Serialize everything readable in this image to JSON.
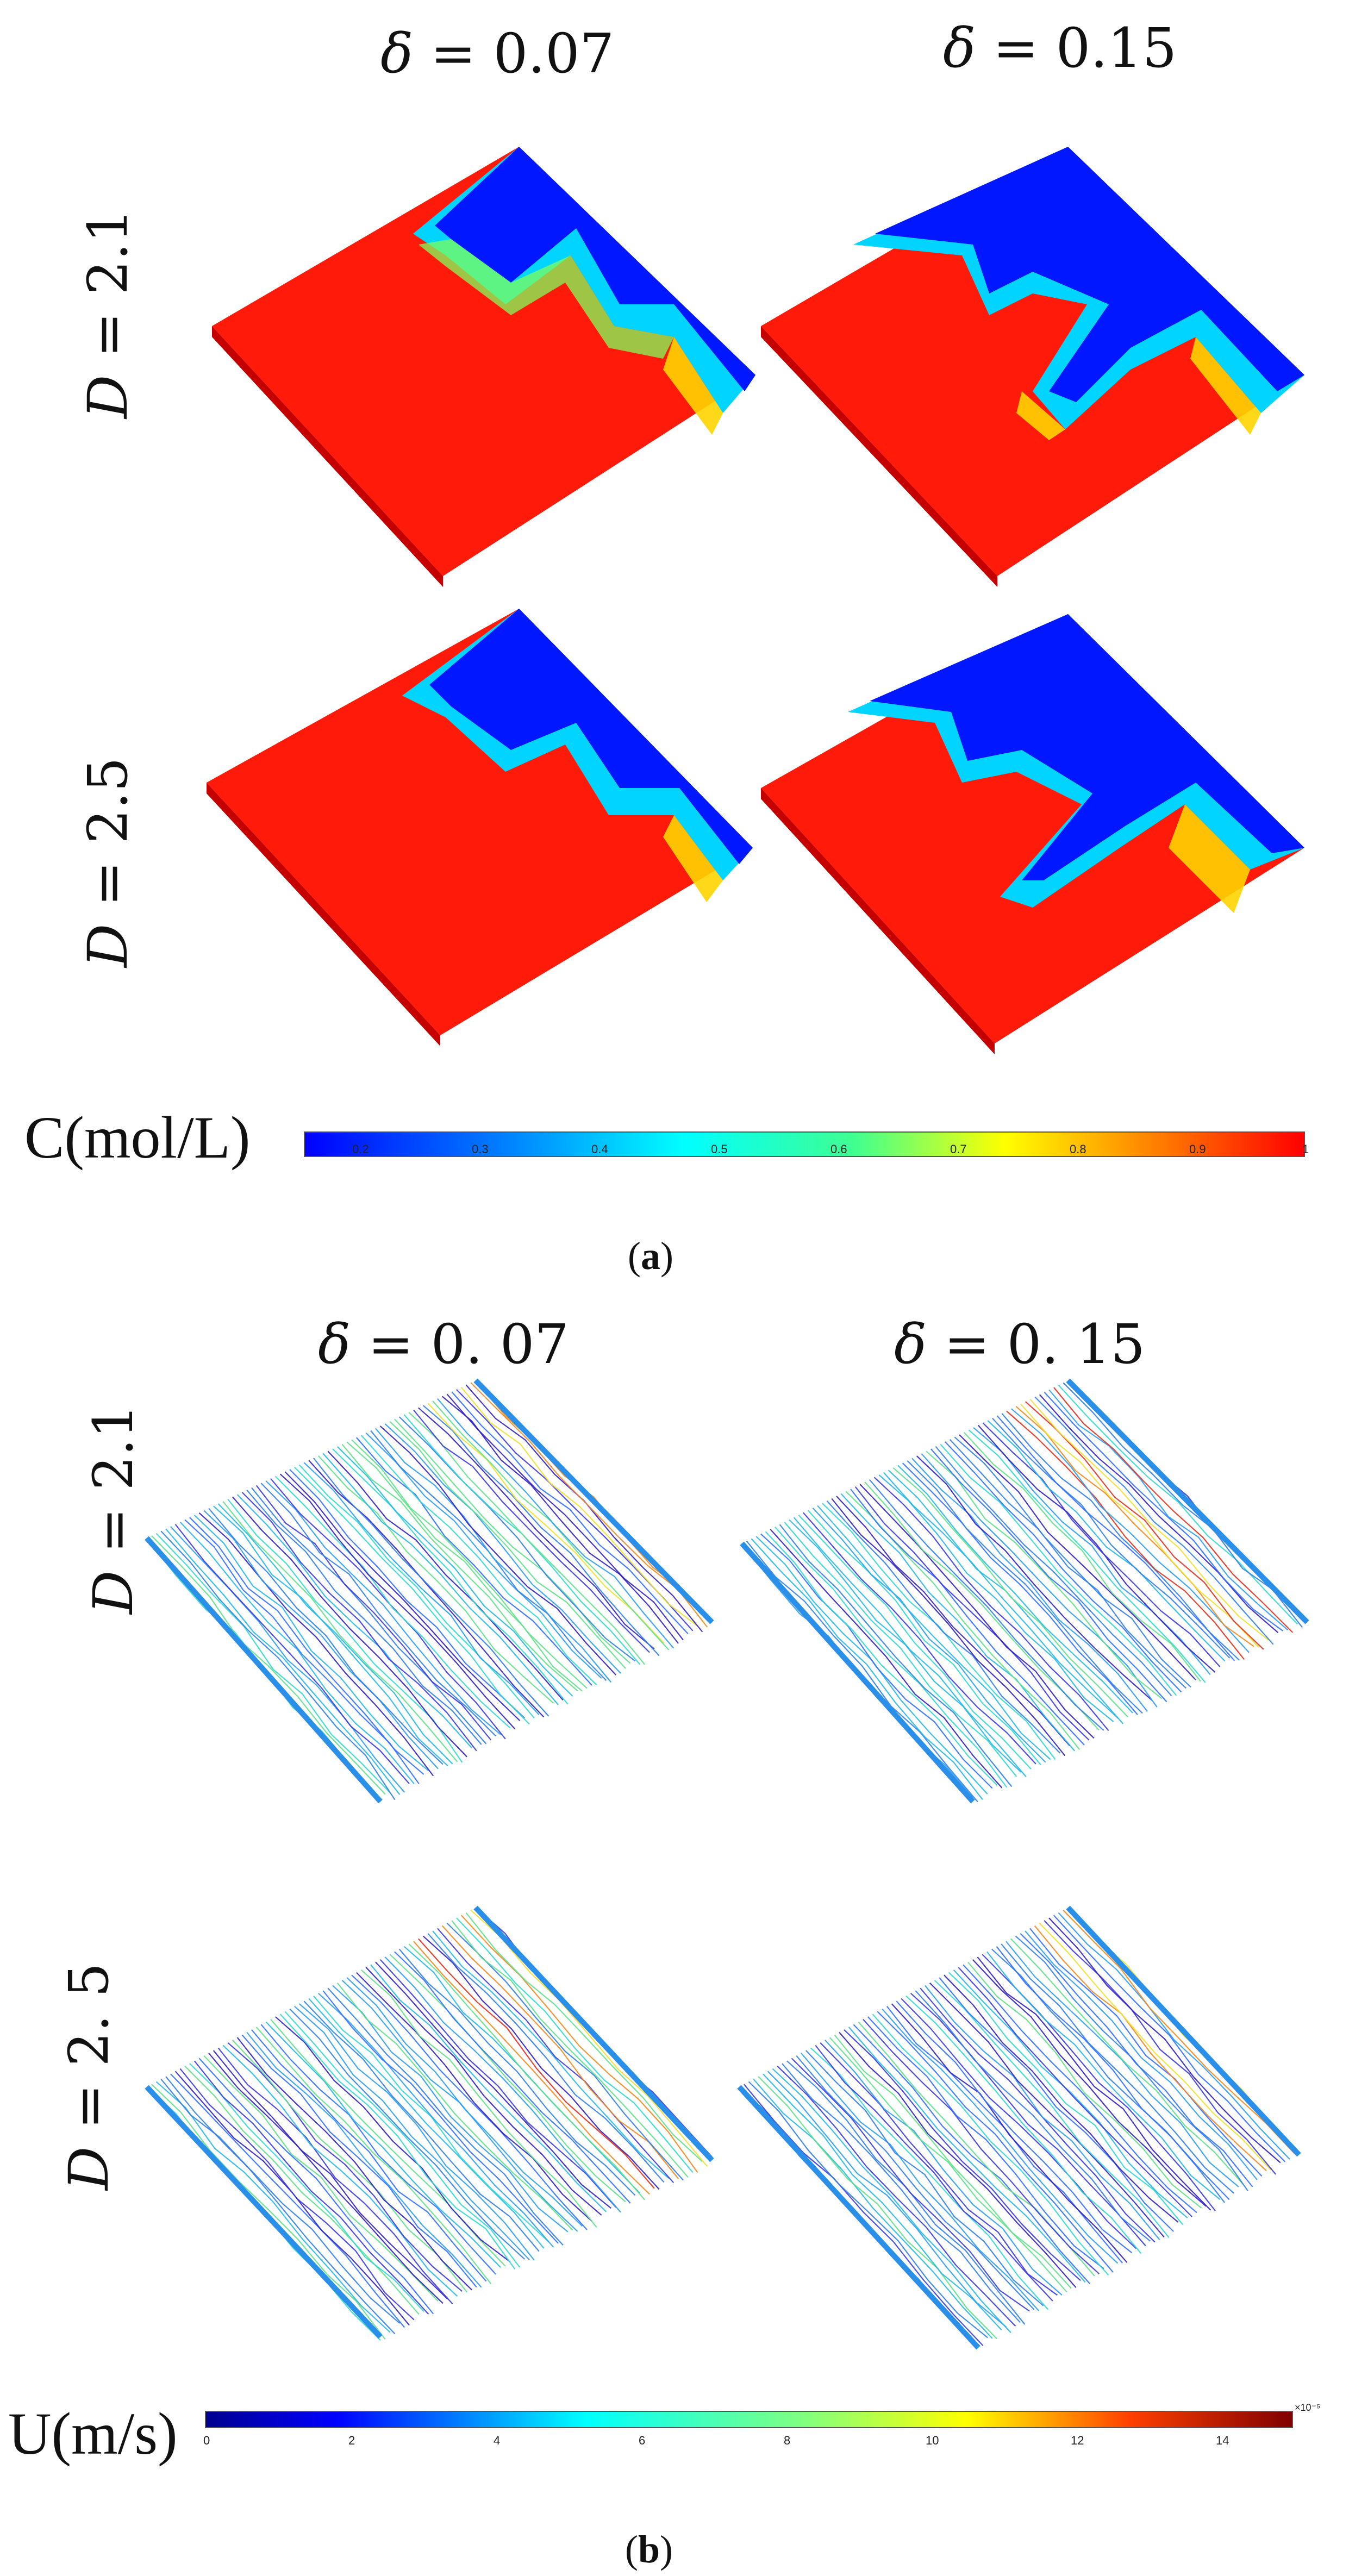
{
  "panel_a": {
    "label_open": "(",
    "label_letter": "a",
    "label_close": ")",
    "col_headers": [
      {
        "var": "δ",
        "eq": " = ",
        "val": "0.07"
      },
      {
        "var": "δ",
        "eq": " = ",
        "val": "0.15"
      }
    ],
    "row_labels": [
      {
        "var": "D",
        "eq": " = ",
        "val": "2.1"
      },
      {
        "var": "D",
        "eq": " = ",
        "val": "2.5"
      }
    ],
    "colorbar": {
      "label": "C(mol/L)",
      "ticks": [
        "0.2",
        "0.3",
        "0.4",
        "0.5",
        "0.6",
        "0.7",
        "0.8",
        "0.9",
        "1"
      ]
    }
  },
  "panel_b": {
    "label_open": "(",
    "label_letter": "b",
    "label_close": ")",
    "col_headers": [
      {
        "var": "δ",
        "eq": " =  ",
        "val": "0. 07"
      },
      {
        "var": "δ",
        "eq": " =  ",
        "val": "0. 15"
      }
    ],
    "row_labels": [
      {
        "var": "D",
        "eq": " = ",
        "val": "2.1"
      },
      {
        "var": "D",
        "eq": " =  ",
        "val": "2. 5"
      }
    ],
    "colorbar": {
      "label": "U(m/s)",
      "ticks": [
        "0",
        "2",
        "4",
        "6",
        "8",
        "10",
        "12",
        "14"
      ],
      "exponent": "×10⁻⁵"
    }
  },
  "colors": {
    "jet": [
      "#00008f",
      "#0000ff",
      "#0080ff",
      "#00ffff",
      "#80ff80",
      "#ffff00",
      "#ff8000",
      "#ff0000",
      "#800000"
    ]
  }
}
